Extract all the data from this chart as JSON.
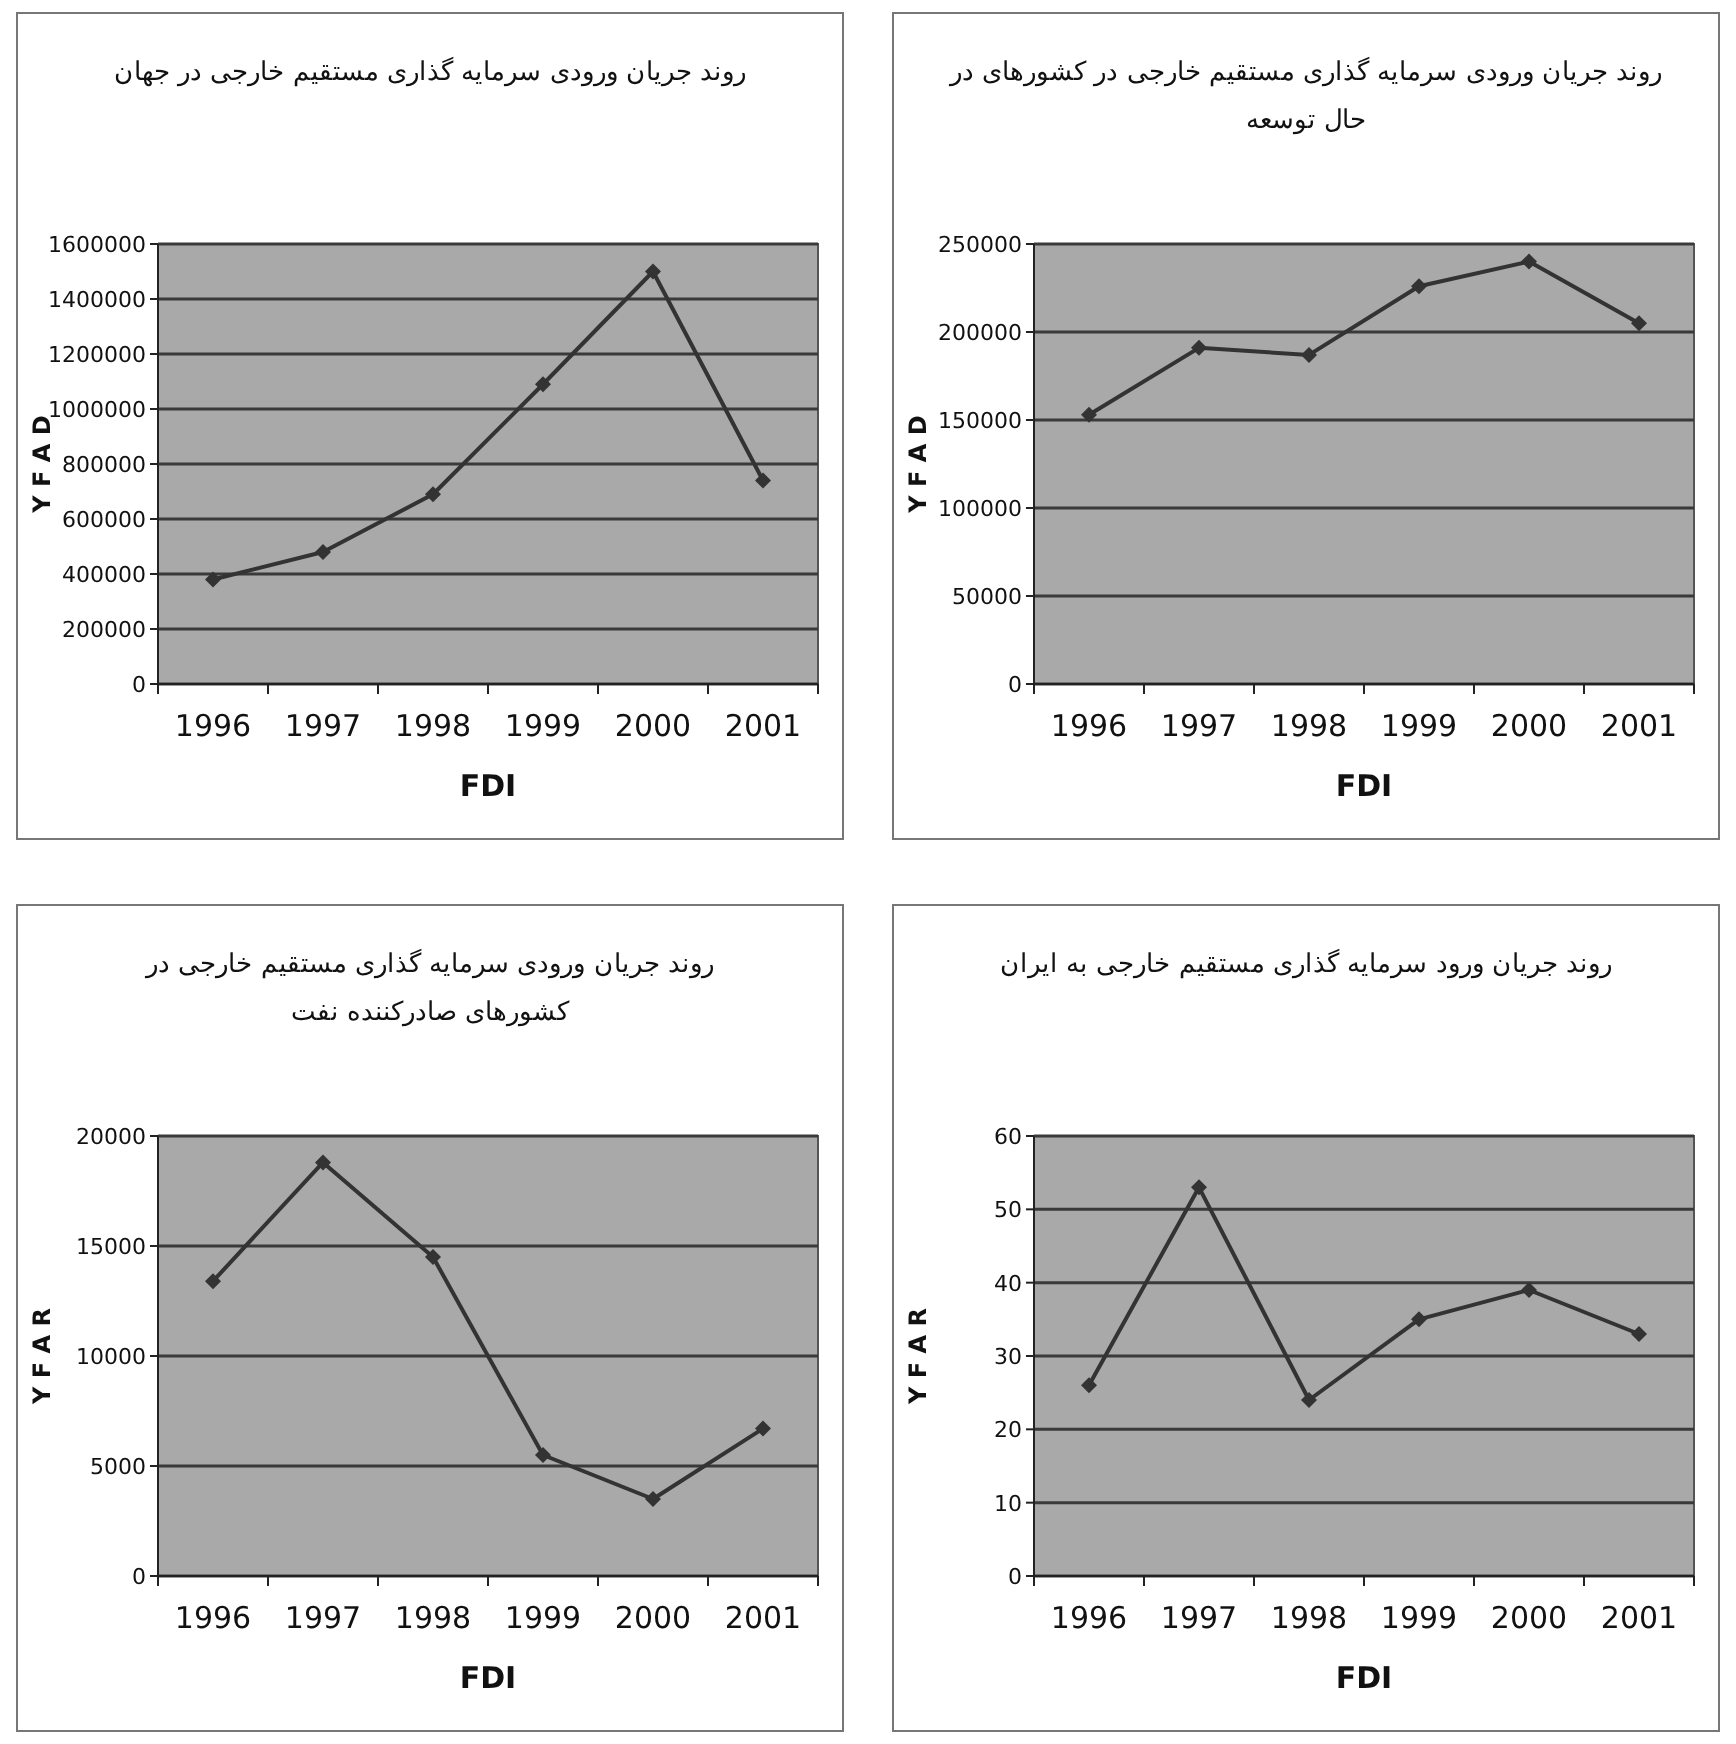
{
  "chart_data": [
    {
      "type": "line",
      "title": "روند جریان ورودی سرمایه گذاری مستقیم خارجی در جهان",
      "xlabel": "FDI",
      "ylabel": "Y F A D",
      "categories": [
        "1996",
        "1997",
        "1998",
        "1999",
        "2000",
        "2001"
      ],
      "series": [
        {
          "color": "#333333",
          "values": [
            380000,
            480000,
            690000,
            1090000,
            1500000,
            740000
          ]
        }
      ],
      "ylim": [
        0,
        1600000
      ],
      "yticks": [
        0,
        200000,
        400000,
        600000,
        800000,
        1000000,
        1200000,
        1400000,
        1600000
      ],
      "grid": "y",
      "marker": "diamond"
    },
    {
      "type": "line",
      "title": "روند جریان ورودی سرمایه گذاری مستقیم خارجی در کشورهای در حال توسعه",
      "xlabel": "FDI",
      "ylabel": "Y F A D",
      "categories": [
        "1996",
        "1997",
        "1998",
        "1999",
        "2000",
        "2001"
      ],
      "series": [
        {
          "color": "#333333",
          "values": [
            153000,
            191000,
            187000,
            226000,
            240000,
            205000
          ]
        }
      ],
      "ylim": [
        0,
        250000
      ],
      "yticks": [
        0,
        50000,
        100000,
        150000,
        200000,
        250000
      ],
      "grid": "y",
      "marker": "diamond"
    },
    {
      "type": "line",
      "title": "روند جریان ورودی سرمایه گذاری مستقیم خارجی در کشورهای صادرکننده نفت",
      "xlabel": "FDI",
      "ylabel": "Y F A R",
      "categories": [
        "1996",
        "1997",
        "1998",
        "1999",
        "2000",
        "2001"
      ],
      "series": [
        {
          "color": "#333333",
          "values": [
            13400,
            18800,
            14500,
            5500,
            3500,
            6700
          ]
        }
      ],
      "ylim": [
        0,
        20000
      ],
      "yticks": [
        0,
        5000,
        10000,
        15000,
        20000
      ],
      "grid": "y",
      "marker": "diamond"
    },
    {
      "type": "line",
      "title": "روند جریان ورود سرمایه گذاری مستقیم خارجی به ایران",
      "xlabel": "FDI",
      "ylabel": "Y F A R",
      "categories": [
        "1996",
        "1997",
        "1998",
        "1999",
        "2000",
        "2001"
      ],
      "series": [
        {
          "color": "#333333",
          "values": [
            26,
            53,
            24,
            35,
            39,
            33
          ]
        }
      ],
      "ylim": [
        0,
        60
      ],
      "yticks": [
        0,
        10,
        20,
        30,
        40,
        50,
        60
      ],
      "grid": "y",
      "marker": "diamond"
    }
  ]
}
